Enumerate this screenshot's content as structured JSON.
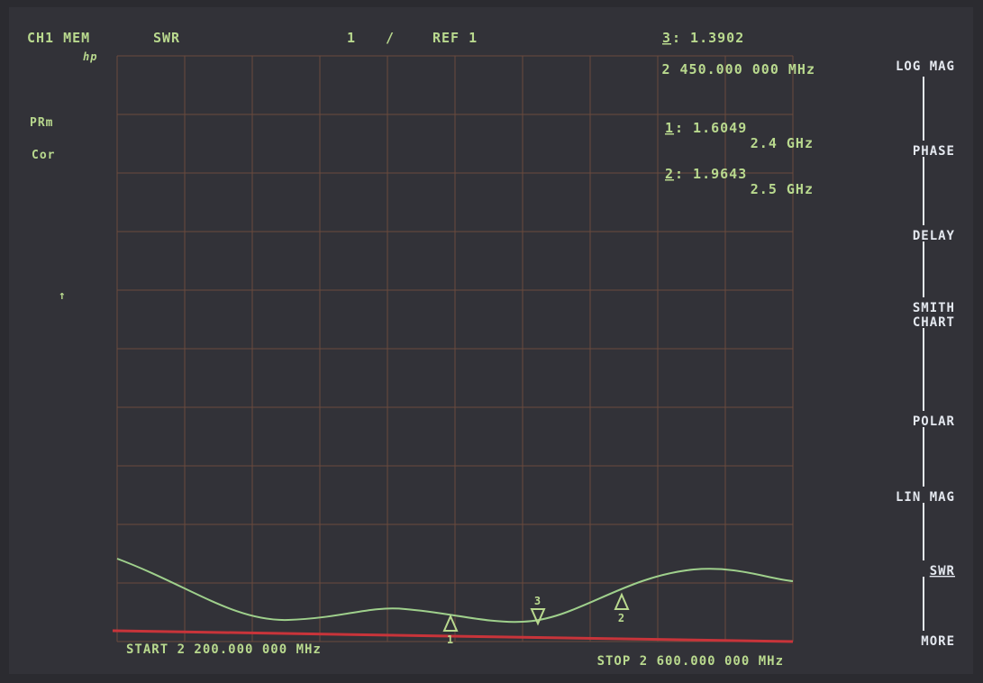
{
  "header": {
    "channel": "CH1 MEM",
    "format": "SWR",
    "scale": "1",
    "divider": "/",
    "ref": "REF 1",
    "active_marker": {
      "number": "3",
      "value": ": 1.3902"
    },
    "brand": "hp",
    "frequency": "2 450.000 000 MHz"
  },
  "status": [
    "PRm",
    "Cor",
    "↑"
  ],
  "markers": [
    {
      "number": "1",
      "value": ": 1.6049",
      "freq": "2.4 GHz"
    },
    {
      "number": "2",
      "value": ": 1.9643",
      "freq": "2.5 GHz"
    }
  ],
  "trace_markers": [
    "1",
    "3",
    "2"
  ],
  "softkeys": [
    [
      "LOG MAG"
    ],
    [
      "PHASE"
    ],
    [
      "DELAY"
    ],
    [
      "SMITH",
      "CHART"
    ],
    [
      "POLAR"
    ],
    [
      "LIN MAG"
    ],
    [
      "SWR"
    ],
    [
      "MORE"
    ]
  ],
  "footer": {
    "start": "START 2 200.000 000 MHz",
    "stop": "STOP 2 600.000 000 MHz"
  }
}
